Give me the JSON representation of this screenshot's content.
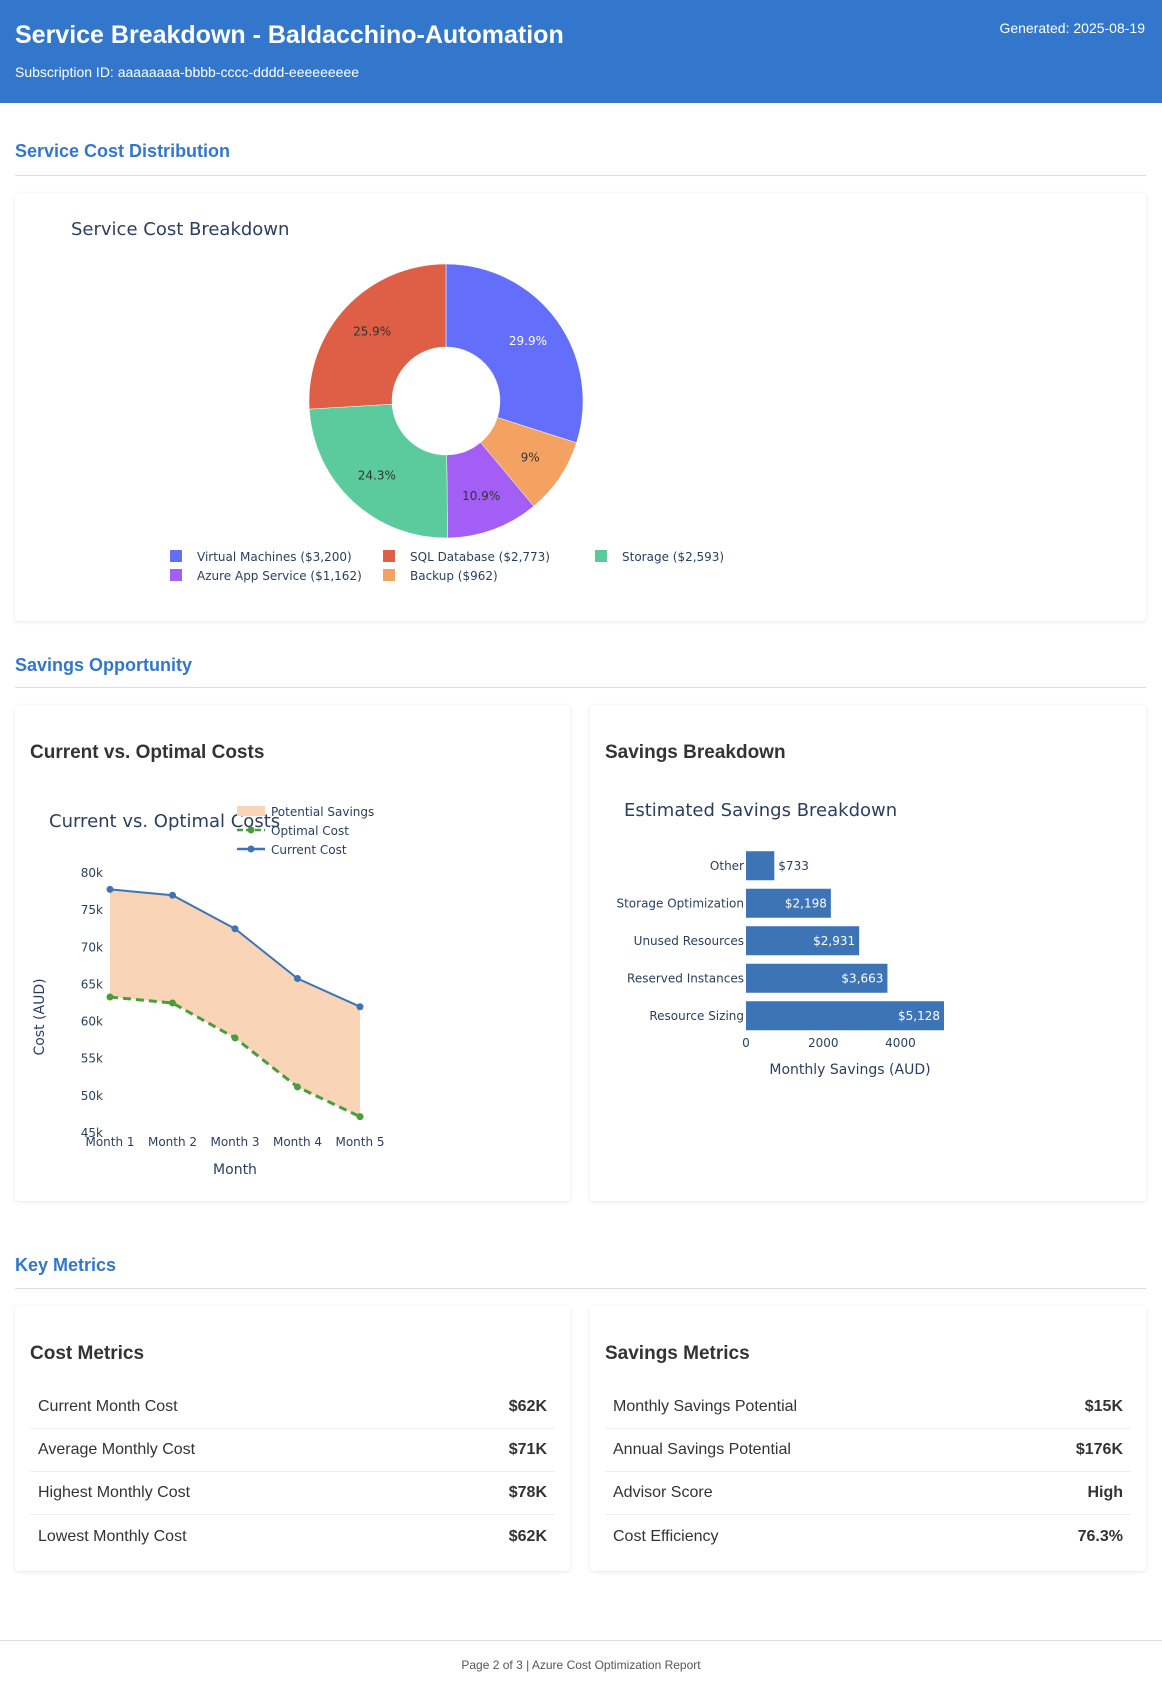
{
  "header": {
    "title": "Service Breakdown - Baldacchino-Automation",
    "subscription": "Subscription ID: aaaaaaaa-bbbb-cccc-dddd-eeeeeeeee",
    "generated": "Generated: 2025-08-19",
    "bg_color": "#3277cc"
  },
  "sections": {
    "distribution": "Service Cost Distribution",
    "savings": "Savings Opportunity",
    "metrics": "Key Metrics"
  },
  "cards": {
    "current_vs_optimal": "Current vs. Optimal Costs",
    "savings_breakdown": "Savings Breakdown",
    "cost_metrics": "Cost Metrics",
    "savings_metrics": "Savings Metrics"
  },
  "chart_data": [
    {
      "id": "service-cost-breakdown",
      "type": "pie",
      "title": "Service Cost Breakdown",
      "hole": true,
      "slices": [
        {
          "label": "Virtual Machines ($3,200)",
          "value": 3200,
          "pct_label": "29.9%",
          "color": "#636efa",
          "text_color": "#ffffff"
        },
        {
          "label": "Backup ($962)",
          "value": 962,
          "pct_label": "9%",
          "color": "#f4a262",
          "text_color": "#333333"
        },
        {
          "label": "Azure App Service ($1,162)",
          "value": 1162,
          "pct_label": "10.9%",
          "color": "#a35ef5",
          "text_color": "#333333"
        },
        {
          "label": "Storage ($2,593)",
          "value": 2593,
          "pct_label": "24.3%",
          "color": "#5bcb9d",
          "text_color": "#333333"
        },
        {
          "label": "SQL Database ($2,773)",
          "value": 2773,
          "pct_label": "25.9%",
          "color": "#de5f45",
          "text_color": "#333333"
        }
      ],
      "legend_order": [
        0,
        4,
        3,
        2,
        1
      ],
      "legend_placement": "bottom"
    },
    {
      "id": "current-vs-optimal",
      "type": "line",
      "title": "Current vs. Optimal Costs",
      "xlabel": "Month",
      "ylabel": "Cost (AUD)",
      "categories": [
        "Month 1",
        "Month 2",
        "Month 3",
        "Month 4",
        "Month 5"
      ],
      "ylim": [
        45000,
        80000
      ],
      "yticks": [
        45000,
        50000,
        55000,
        60000,
        65000,
        70000,
        75000,
        80000
      ],
      "ytick_labels": [
        "45k",
        "50k",
        "55k",
        "60k",
        "65k",
        "70k",
        "75k",
        "80k"
      ],
      "series": [
        {
          "name": "Current Cost",
          "values": [
            77800,
            77000,
            72500,
            65800,
            62000
          ],
          "color": "#3c74b6",
          "style": "solid"
        },
        {
          "name": "Optimal Cost",
          "values": [
            63300,
            62500,
            57800,
            51200,
            47200
          ],
          "color": "#4a9e3a",
          "style": "dashed"
        }
      ],
      "fill": {
        "name": "Potential Savings",
        "color": "#f9d4b6"
      },
      "legend_placement": "top-right"
    },
    {
      "id": "estimated-savings",
      "type": "bar",
      "orientation": "horizontal",
      "title": "Estimated Savings Breakdown",
      "xlabel": "Monthly Savings (AUD)",
      "categories": [
        "Other",
        "Storage Optimization",
        "Unused Resources",
        "Reserved Instances",
        "Resource Sizing"
      ],
      "values": [
        733,
        2198,
        2931,
        3663,
        5128
      ],
      "value_labels": [
        "$733",
        "$2,198",
        "$2,931",
        "$3,663",
        "$5,128"
      ],
      "xlim": [
        0,
        5128
      ],
      "xticks": [
        0,
        2000,
        4000
      ],
      "color": "#3c74b6"
    }
  ],
  "cost_metrics": [
    {
      "label": "Current Month Cost",
      "value": "$62K"
    },
    {
      "label": "Average Monthly Cost",
      "value": "$71K"
    },
    {
      "label": "Highest Monthly Cost",
      "value": "$78K"
    },
    {
      "label": "Lowest Monthly Cost",
      "value": "$62K"
    }
  ],
  "savings_metrics": [
    {
      "label": "Monthly Savings Potential",
      "value": "$15K"
    },
    {
      "label": "Annual Savings Potential",
      "value": "$176K"
    },
    {
      "label": "Advisor Score",
      "value": "High"
    },
    {
      "label": "Cost Efficiency",
      "value": "76.3%"
    }
  ],
  "footer": "Page 2 of 3 | Azure Cost Optimization Report"
}
